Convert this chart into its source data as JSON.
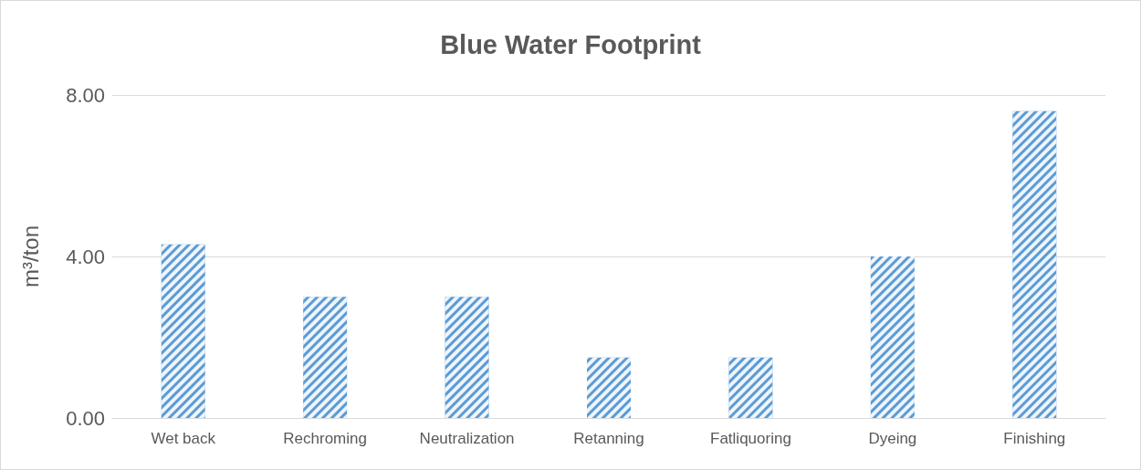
{
  "chart_data": {
    "type": "bar",
    "title": "Blue Water Footprint",
    "ylabel": "m³/ton",
    "categories": [
      "Wet back",
      "Rechroming",
      "Neutralization",
      "Retanning",
      "Fatliquoring",
      "Dyeing",
      "Finishing"
    ],
    "values": [
      4.3,
      3.0,
      3.0,
      1.5,
      1.5,
      4.0,
      7.6
    ],
    "color": "#5b9bd5",
    "ylim": [
      0,
      8
    ],
    "yticks": [
      {
        "value": 0,
        "label": "0.00"
      },
      {
        "value": 4,
        "label": "4.00"
      },
      {
        "value": 8,
        "label": "8.00"
      }
    ],
    "grid": "y"
  }
}
